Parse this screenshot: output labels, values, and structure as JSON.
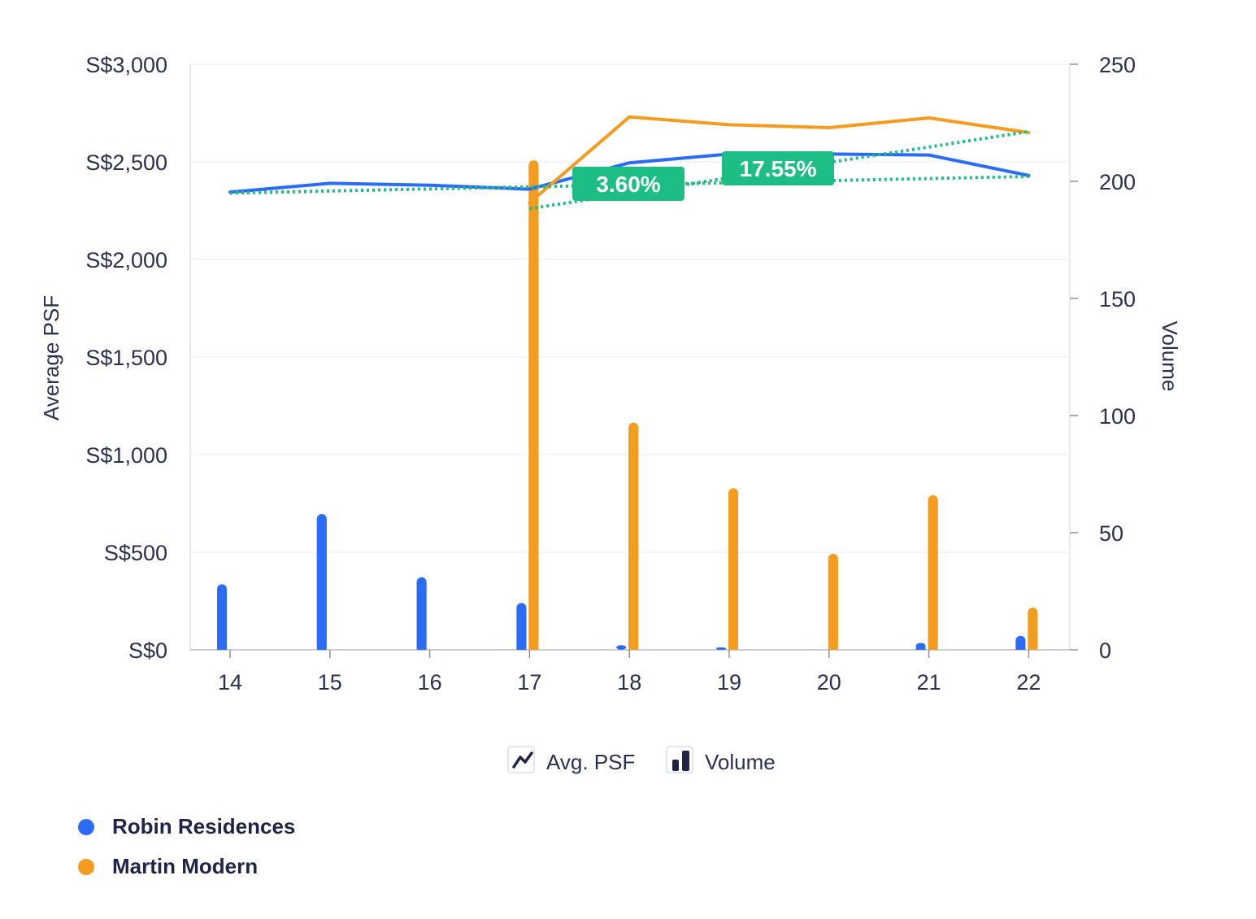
{
  "chart_data": {
    "type": "bar",
    "categories": [
      "14",
      "15",
      "16",
      "17",
      "18",
      "19",
      "20",
      "21",
      "22"
    ],
    "ylabel": "Average PSF",
    "y2label": "Volume",
    "ylim": [
      0,
      3000
    ],
    "y2lim": [
      0,
      250
    ],
    "y_ticks": [
      "S$0",
      "S$500",
      "S$1,000",
      "S$1,500",
      "S$2,000",
      "S$2,500",
      "S$3,000"
    ],
    "y_tick_values": [
      0,
      500,
      1000,
      1500,
      2000,
      2500,
      3000
    ],
    "y2_ticks": [
      "0",
      "50",
      "100",
      "150",
      "200",
      "250"
    ],
    "y2_tick_values": [
      0,
      50,
      100,
      150,
      200,
      250
    ],
    "series": [
      {
        "name": "Robin Residences",
        "color": "#2b6cf6",
        "avg_psf": [
          2345,
          2390,
          2380,
          2360,
          2495,
          2540,
          2540,
          2535,
          2430
        ],
        "volume": [
          28,
          58,
          31,
          20,
          2,
          1,
          null,
          3,
          6
        ]
      },
      {
        "name": "Martin Modern",
        "color": "#f39c1f",
        "avg_psf": [
          null,
          null,
          null,
          2290,
          2730,
          2690,
          2675,
          2725,
          2650
        ],
        "volume": [
          null,
          null,
          null,
          209,
          97,
          69,
          41,
          66,
          18
        ]
      }
    ],
    "trendlines": [
      {
        "series": "Robin Residences",
        "from": "14",
        "to": "22",
        "start": 2340,
        "end": 2425,
        "change_label": "3.60%",
        "color": "#1dbd86"
      },
      {
        "series": "Martin Modern",
        "from": "17",
        "to": "22",
        "start": 2260,
        "end": 2655,
        "change_label": "17.55%",
        "color": "#1dbd86"
      }
    ],
    "legend": {
      "position": "bottom",
      "items": [
        {
          "label": "Avg. PSF",
          "icon": "line-chart-icon"
        },
        {
          "label": "Volume",
          "icon": "bar-chart-icon"
        }
      ]
    },
    "grid": true
  },
  "series_legend": [
    {
      "label": "Robin Residences",
      "color": "#2b6cf6"
    },
    {
      "label": "Martin Modern",
      "color": "#f39c1f"
    }
  ]
}
